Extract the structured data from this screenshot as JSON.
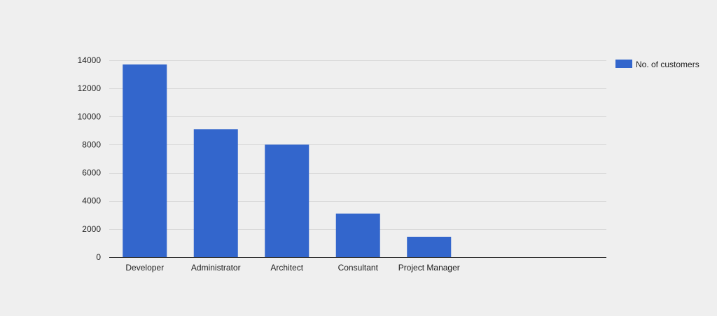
{
  "chart_data": {
    "type": "bar",
    "categories": [
      "Developer",
      "Administrator",
      "Architect",
      "Consultant",
      "Project Manager"
    ],
    "series": [
      {
        "name": "No. of customers",
        "values": [
          13700,
          9100,
          8000,
          3100,
          1450
        ]
      }
    ],
    "title": "",
    "xlabel": "",
    "ylabel": "",
    "ylim": [
      0,
      14000
    ],
    "yticks": [
      0,
      2000,
      4000,
      6000,
      8000,
      10000,
      12000,
      14000
    ],
    "grid": true,
    "legend_position": "right"
  },
  "colors": {
    "background": "#efefef",
    "bar": "#3366cc",
    "grid": "#d9d9d9",
    "axis": "#333333",
    "text": "#222222"
  }
}
